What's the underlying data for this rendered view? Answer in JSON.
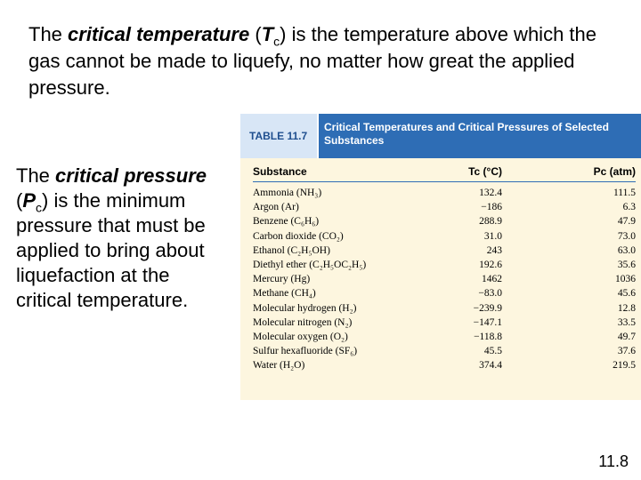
{
  "intro": {
    "prefix": "The ",
    "term": "critical temperature",
    "symbol_open": " (",
    "symbol": "T",
    "symbol_sub": "c",
    "rest": ") is the temperature above which the gas cannot be made to liquefy, no matter how great the applied pressure."
  },
  "side": {
    "prefix": "The ",
    "term": "critical pressure",
    "symbol_open": " (",
    "symbol": "P",
    "symbol_sub": "c",
    "rest": ") is the minimum pressure that must be applied to bring about liquefaction at the critical temperature."
  },
  "table": {
    "tag": "TABLE 11.7",
    "caption": "Critical Temperatures and Critical Pressures of Selected Substances",
    "headers": {
      "substance": "Substance",
      "tc": "Tc (°C)",
      "pc": "Pc (atm)"
    },
    "rows": [
      {
        "name": "Ammonia (NH₃)",
        "tc": "132.4",
        "pc": "111.5"
      },
      {
        "name": "Argon (Ar)",
        "tc": "−186",
        "pc": "6.3"
      },
      {
        "name": "Benzene (C₆H₆)",
        "tc": "288.9",
        "pc": "47.9"
      },
      {
        "name": "Carbon dioxide (CO₂)",
        "tc": "31.0",
        "pc": "73.0"
      },
      {
        "name": "Ethanol (C₂H₅OH)",
        "tc": "243",
        "pc": "63.0"
      },
      {
        "name": "Diethyl ether (C₂H₅OC₂H₅)",
        "tc": "192.6",
        "pc": "35.6"
      },
      {
        "name": "Mercury (Hg)",
        "tc": "1462",
        "pc": "1036"
      },
      {
        "name": "Methane (CH₄)",
        "tc": "−83.0",
        "pc": "45.6"
      },
      {
        "name": "Molecular hydrogen (H₂)",
        "tc": "−239.9",
        "pc": "12.8"
      },
      {
        "name": "Molecular nitrogen (N₂)",
        "tc": "−147.1",
        "pc": "33.5"
      },
      {
        "name": "Molecular oxygen (O₂)",
        "tc": "−118.8",
        "pc": "49.7"
      },
      {
        "name": "Sulfur hexafluoride (SF₆)",
        "tc": "45.5",
        "pc": "37.6"
      },
      {
        "name": "Water (H₂O)",
        "tc": "374.4",
        "pc": "219.5"
      }
    ]
  },
  "slide_number": "11.8"
}
